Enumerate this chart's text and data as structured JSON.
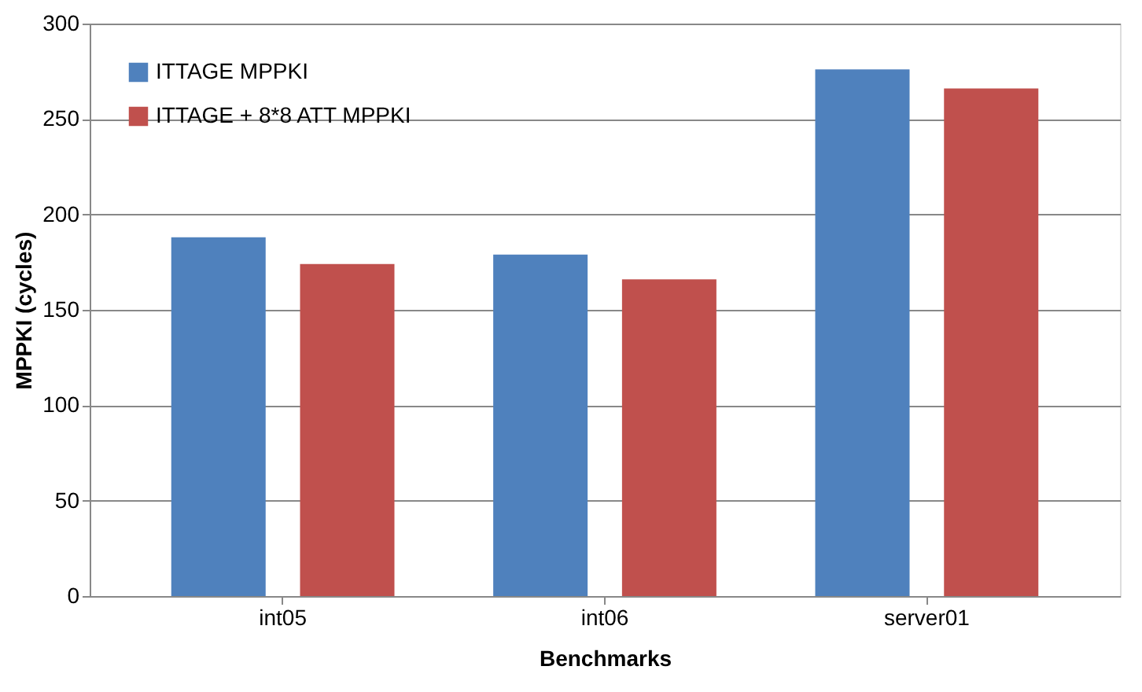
{
  "chart_data": {
    "type": "bar",
    "xlabel": "Benchmarks",
    "ylabel": "MPPKI (cycles)",
    "categories": [
      "int05",
      "int06",
      "server01"
    ],
    "series": [
      {
        "name": "ITTAGE MPPKI",
        "color": "#4f81bd",
        "values": [
          188,
          179,
          276
        ]
      },
      {
        "name": "ITTAGE + 8*8 ATT MPPKI",
        "color": "#c0504d",
        "values": [
          174,
          166,
          266
        ]
      }
    ],
    "ylim": [
      0,
      300
    ],
    "yticks": [
      0,
      50,
      100,
      150,
      200,
      250,
      300
    ],
    "grid": "y",
    "legend": "top left"
  }
}
